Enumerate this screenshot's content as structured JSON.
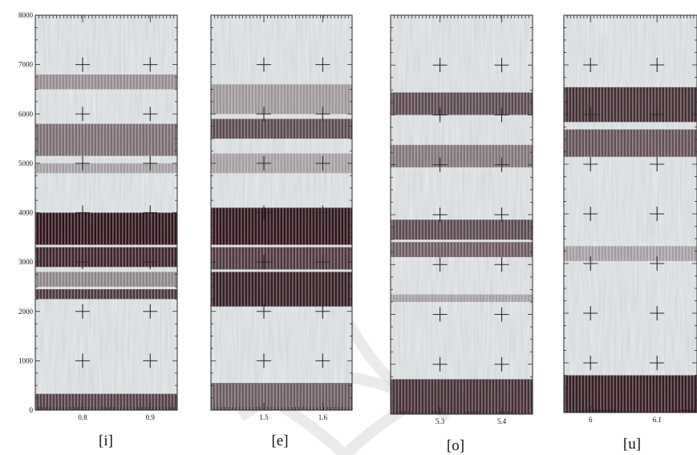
{
  "chart_data": [
    {
      "type": "heatmap",
      "vowel": "[i]",
      "x_ticks": [
        0.8,
        0.9
      ],
      "xlim": [
        0.73,
        0.94
      ],
      "y_ticks": [
        0,
        1000,
        2000,
        3000,
        4000,
        5000,
        6000,
        7000,
        8000
      ],
      "ylim": [
        0,
        8000
      ],
      "formant_bands_hz": [
        {
          "low": 0,
          "high": 330,
          "intensity": 0.75
        },
        {
          "low": 2250,
          "high": 2450,
          "intensity": 0.8
        },
        {
          "low": 2500,
          "high": 2800,
          "intensity": 0.35
        },
        {
          "low": 2900,
          "high": 3300,
          "intensity": 0.9
        },
        {
          "low": 3350,
          "high": 4000,
          "intensity": 1.0
        },
        {
          "low": 4800,
          "high": 5000,
          "intensity": 0.2
        },
        {
          "low": 5150,
          "high": 5800,
          "intensity": 0.5
        },
        {
          "low": 6500,
          "high": 6800,
          "intensity": 0.3
        }
      ]
    },
    {
      "type": "heatmap",
      "vowel": "[e]",
      "x_ticks": [
        1.5,
        1.6
      ],
      "xlim": [
        1.41,
        1.65
      ],
      "y_ticks": [
        0,
        1000,
        2000,
        3000,
        4000,
        5000,
        6000,
        7000
      ],
      "ylim": [
        0,
        8000
      ],
      "formant_bands_hz": [
        {
          "low": 0,
          "high": 550,
          "intensity": 0.6
        },
        {
          "low": 2100,
          "high": 2800,
          "intensity": 0.95
        },
        {
          "low": 2850,
          "high": 3300,
          "intensity": 0.8
        },
        {
          "low": 3350,
          "high": 4100,
          "intensity": 1.0
        },
        {
          "low": 4800,
          "high": 5200,
          "intensity": 0.2
        },
        {
          "low": 5500,
          "high": 5900,
          "intensity": 0.7
        },
        {
          "low": 6000,
          "high": 6600,
          "intensity": 0.25
        }
      ]
    },
    {
      "type": "heatmap",
      "vowel": "[o]",
      "x_ticks": [
        5.3,
        5.4
      ],
      "xlim": [
        5.22,
        5.45
      ],
      "y_ticks": [
        0,
        1000,
        2000,
        3000,
        4000,
        5000,
        6000,
        7000
      ],
      "ylim": [
        0,
        8000
      ],
      "formant_bands_hz": [
        {
          "low": 0,
          "high": 700,
          "intensity": 0.85
        },
        {
          "low": 2250,
          "high": 2400,
          "intensity": 0.2
        },
        {
          "low": 3150,
          "high": 3450,
          "intensity": 0.6
        },
        {
          "low": 3500,
          "high": 3900,
          "intensity": 0.7
        },
        {
          "low": 4950,
          "high": 5400,
          "intensity": 0.45
        },
        {
          "low": 6000,
          "high": 6450,
          "intensity": 0.7
        }
      ]
    },
    {
      "type": "heatmap",
      "vowel": "[u]",
      "x_ticks": [
        6,
        6.1
      ],
      "xlim": [
        5.96,
        6.16
      ],
      "y_ticks": [
        0,
        1000,
        2000,
        3000,
        4000,
        5000,
        6000,
        7000
      ],
      "ylim": [
        0,
        8000
      ],
      "formant_bands_hz": [
        {
          "low": 0,
          "high": 750,
          "intensity": 0.95
        },
        {
          "low": 3050,
          "high": 3350,
          "intensity": 0.2
        },
        {
          "low": 5150,
          "high": 5700,
          "intensity": 0.65
        },
        {
          "low": 5850,
          "high": 6550,
          "intensity": 0.85
        }
      ]
    }
  ]
}
